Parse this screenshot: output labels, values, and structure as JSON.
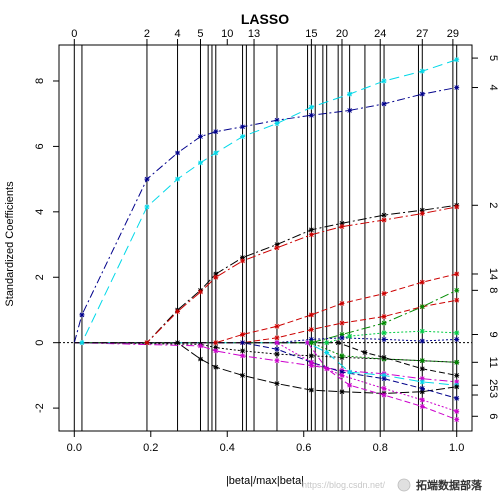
{
  "chart_data": {
    "type": "line",
    "title": "LASSO",
    "xlabel": "|beta|/max|beta|",
    "ylabel": "Standardized Coefficients",
    "xlim": [
      -0.04,
      1.04
    ],
    "ylim": [
      -2.7,
      9.1
    ],
    "x_ticks": [
      0.0,
      0.2,
      0.4,
      0.6,
      0.8,
      1.0
    ],
    "x_tick_labels": [
      "0.0",
      "0.2",
      "0.4",
      "0.6",
      "0.8",
      "1.0"
    ],
    "y_ticks": [
      -2,
      0,
      2,
      4,
      6,
      8
    ],
    "y_tick_labels": [
      "-2",
      "0",
      "2",
      "4",
      "6",
      "8"
    ],
    "top_ticks": [
      0.0,
      0.19,
      0.27,
      0.33,
      0.4,
      0.47,
      0.62,
      0.7,
      0.8,
      0.91,
      0.99
    ],
    "top_tick_labels": [
      "0",
      "2",
      "4",
      "5",
      "10",
      "13",
      "15",
      "20",
      "24",
      "27",
      "29"
    ],
    "steps": [
      0.0,
      0.02,
      0.19,
      0.27,
      0.33,
      0.35,
      0.36,
      0.37,
      0.44,
      0.45,
      0.47,
      0.53,
      0.61,
      0.62,
      0.63,
      0.65,
      0.66,
      0.69,
      0.7,
      0.72,
      0.76,
      0.8,
      0.81,
      0.9,
      0.91,
      0.99,
      1.0
    ],
    "right_labels": [
      {
        "label": "5",
        "y": 8.7
      },
      {
        "label": "4",
        "y": 7.8
      },
      {
        "label": "2",
        "y": 4.2
      },
      {
        "label": "14",
        "y": 2.1
      },
      {
        "label": "8",
        "y": 1.6
      },
      {
        "label": "9",
        "y": 0.25
      },
      {
        "label": "11",
        "y": -0.6
      },
      {
        "label": "25",
        "y": -1.3
      },
      {
        "label": "3",
        "y": -1.6
      },
      {
        "label": "6",
        "y": -2.25
      }
    ],
    "series": [
      {
        "color": "#00008b",
        "dash": "8,3,2,3",
        "x": [
          0,
          0.02,
          0.19,
          0.27,
          0.33,
          0.37,
          0.44,
          0.53,
          0.62,
          0.72,
          0.81,
          0.91,
          1.0
        ],
        "values": [
          0,
          0.85,
          5.0,
          5.8,
          6.3,
          6.45,
          6.6,
          6.8,
          6.95,
          7.1,
          7.3,
          7.6,
          7.8
        ]
      },
      {
        "color": "#00d8e8",
        "dash": "10,5",
        "x": [
          0,
          0.02,
          0.19,
          0.27,
          0.33,
          0.37,
          0.44,
          0.53,
          0.62,
          0.72,
          0.81,
          0.91,
          1.0
        ],
        "values": [
          0,
          0,
          4.15,
          5.0,
          5.5,
          5.8,
          6.3,
          6.7,
          7.2,
          7.6,
          8.0,
          8.3,
          8.65
        ]
      },
      {
        "color": "#000000",
        "dash": "9,3,2,3",
        "x": [
          0,
          0.19,
          0.27,
          0.33,
          0.37,
          0.44,
          0.53,
          0.62,
          0.7,
          0.81,
          0.91,
          1.0
        ],
        "values": [
          0,
          0,
          1.0,
          1.6,
          2.1,
          2.6,
          3.0,
          3.45,
          3.65,
          3.9,
          4.05,
          4.2
        ]
      },
      {
        "color": "#cc0000",
        "dash": "9,3,2,3",
        "x": [
          0,
          0.19,
          0.27,
          0.33,
          0.37,
          0.44,
          0.53,
          0.62,
          0.7,
          0.81,
          0.91,
          1.0
        ],
        "values": [
          0,
          0,
          0.95,
          1.55,
          2.0,
          2.5,
          2.9,
          3.3,
          3.55,
          3.75,
          3.95,
          4.15
        ]
      },
      {
        "color": "#cc0000",
        "dash": "6,3",
        "x": [
          0,
          0.37,
          0.44,
          0.53,
          0.62,
          0.7,
          0.81,
          0.91,
          1.0
        ],
        "values": [
          0,
          0,
          0.25,
          0.5,
          0.85,
          1.2,
          1.5,
          1.85,
          2.1
        ]
      },
      {
        "color": "#cc0000",
        "dash": "6,3",
        "x": [
          0,
          0.44,
          0.53,
          0.62,
          0.7,
          0.81,
          0.91,
          1.0
        ],
        "values": [
          0,
          0,
          0.15,
          0.4,
          0.6,
          0.8,
          1.1,
          1.3
        ]
      },
      {
        "color": "#008b00",
        "dash": "9,3,2,3",
        "x": [
          0,
          0.62,
          0.7,
          0.81,
          0.91,
          1.0
        ],
        "values": [
          0,
          0,
          0.25,
          0.6,
          1.1,
          1.6
        ]
      },
      {
        "color": "#00cc44",
        "dash": "2,2",
        "x": [
          0,
          0.66,
          0.72,
          0.81,
          0.91,
          1.0
        ],
        "values": [
          0,
          0,
          0.2,
          0.3,
          0.35,
          0.3
        ]
      },
      {
        "color": "#00008b",
        "dash": "2,2",
        "x": [
          0,
          0.53,
          0.62,
          0.7,
          0.81,
          0.91,
          1.0
        ],
        "values": [
          0,
          0,
          0.1,
          0.15,
          0.1,
          0.05,
          0.1
        ]
      },
      {
        "color": "#000000",
        "dash": "2,2",
        "x": [
          0,
          0.33,
          0.37,
          0.44,
          0.53,
          0.62,
          0.7,
          0.81,
          0.91,
          1.0
        ],
        "values": [
          0,
          -0.05,
          -0.15,
          -0.25,
          -0.35,
          -0.4,
          -0.45,
          -0.5,
          -0.55,
          -0.6
        ]
      },
      {
        "color": "#cc00cc",
        "dash": "8,3,2,3",
        "x": [
          0,
          0.33,
          0.37,
          0.44,
          0.53,
          0.62,
          0.7,
          0.81,
          0.91,
          1.0
        ],
        "values": [
          0,
          -0.1,
          -0.25,
          -0.4,
          -0.55,
          -0.7,
          -0.85,
          -0.95,
          -1.1,
          -1.2
        ]
      },
      {
        "color": "#00d8e8",
        "dash": "10,5",
        "x": [
          0,
          0.61,
          0.66,
          0.72,
          0.81,
          0.91,
          1.0
        ],
        "values": [
          0,
          0,
          -0.3,
          -0.9,
          -1.0,
          -1.2,
          -1.3
        ]
      },
      {
        "color": "#000000",
        "dash": "9,3",
        "x": [
          0,
          0.27,
          0.33,
          0.37,
          0.44,
          0.53,
          0.62,
          0.7,
          0.81,
          0.91,
          1.0
        ],
        "values": [
          0,
          0,
          -0.5,
          -0.75,
          -1.0,
          -1.25,
          -1.45,
          -1.5,
          -1.55,
          -1.5,
          -1.35
        ]
      },
      {
        "color": "#00008b",
        "dash": "6,3",
        "x": [
          0,
          0.44,
          0.53,
          0.62,
          0.7,
          0.81,
          0.91,
          1.0
        ],
        "values": [
          0,
          0,
          -0.2,
          -0.6,
          -0.9,
          -1.1,
          -1.4,
          -1.7
        ]
      },
      {
        "color": "#cc00cc",
        "dash": "2,2",
        "x": [
          0,
          0.53,
          0.62,
          0.7,
          0.81,
          0.91,
          1.0
        ],
        "values": [
          0,
          0,
          -0.6,
          -1.0,
          -1.4,
          -1.75,
          -2.1
        ]
      },
      {
        "color": "#cc00cc",
        "dash": "6,3",
        "x": [
          0,
          0.61,
          0.66,
          0.72,
          0.81,
          0.91,
          1.0
        ],
        "values": [
          0,
          0,
          -0.8,
          -1.3,
          -1.6,
          -1.95,
          -2.35
        ]
      },
      {
        "color": "#008b00",
        "dash": "2,2",
        "x": [
          0,
          0.62,
          0.7,
          0.81,
          0.91,
          1.0
        ],
        "values": [
          0,
          0,
          -0.4,
          -0.5,
          -0.55,
          -0.6
        ]
      },
      {
        "color": "#000000",
        "dash": "6,3",
        "x": [
          0,
          0.69,
          0.76,
          0.81,
          0.91,
          1.0
        ],
        "values": [
          0,
          0,
          -0.3,
          -0.45,
          -0.8,
          -1.0
        ]
      }
    ]
  },
  "watermark": {
    "url": "https://blog.csdn.net/",
    "brand": "拓端数据部落"
  }
}
